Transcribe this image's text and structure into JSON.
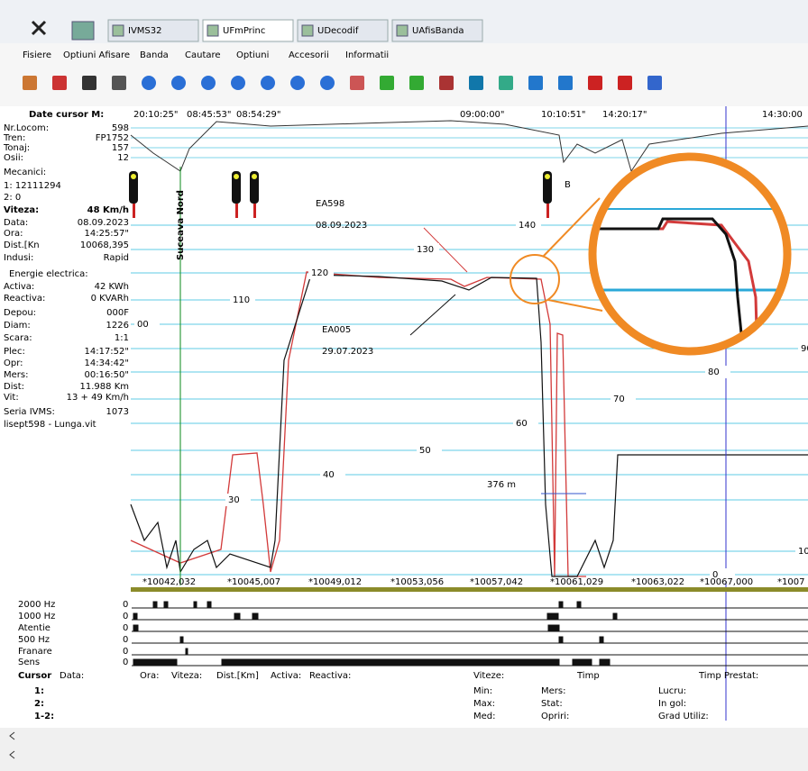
{
  "tabs": [
    "IVMS32",
    "UFmPrinc",
    "UDecodif",
    "UAfisBanda"
  ],
  "menu": [
    "Fisiere",
    "Optiuni Afisare",
    "Banda",
    "Cautare",
    "Optiuni",
    "Accesorii",
    "Informatii"
  ],
  "cursor_header": {
    "label": "Date cursor M:",
    "times": [
      "20:10:25\"",
      "08:45:53\"",
      "08:54:29\"",
      "09:00:00\"",
      "10:10:51\"",
      "14:20:17\"",
      "14:30:00"
    ]
  },
  "info_panel": [
    {
      "label": "Nr.Locom:",
      "value": "598"
    },
    {
      "label": "Tren:",
      "value": "FP1752"
    },
    {
      "label": "Tonaj:",
      "value": "157"
    },
    {
      "label": "Osii:",
      "value": "12"
    },
    {
      "label": "Mecanici:"
    },
    {
      "label": "1: 12111294"
    },
    {
      "label": "2: 0"
    },
    {
      "label": "Viteza:",
      "value": "48 Km/h"
    },
    {
      "label": "Data:",
      "value": "08.09.2023"
    },
    {
      "label": "Ora:",
      "value": "14:25:57\""
    },
    {
      "label": "Dist.[Kn",
      "value": "10068,395"
    },
    {
      "label": "Indusi:",
      "value": "Rapid"
    },
    {
      "label": "Energie electrica:"
    },
    {
      "label": "Activa:",
      "value": "42 KWh"
    },
    {
      "label": "Reactiva:",
      "value": "0 KVARh"
    },
    {
      "label": "Depou:",
      "value": "000F"
    },
    {
      "label": "Diam:",
      "value": "1226"
    },
    {
      "label": "Scara:",
      "value": "1:1"
    },
    {
      "label": "Plec:",
      "value": "14:17:52\""
    },
    {
      "label": "Opr:",
      "value": "14:34:42\""
    },
    {
      "label": "Mers:",
      "value": "00:16:50\""
    },
    {
      "label": "Dist:",
      "value": "11.988 Km"
    },
    {
      "label": "Vit:",
      "value": "13 + 49 Km/h"
    },
    {
      "label": "Seria IVMS:",
      "value": "1073"
    },
    {
      "label": "lisept598 - Lunga.vit"
    }
  ],
  "chart": {
    "annotations": {
      "ea598": "EA598",
      "date598": "08.09.2023",
      "ea005": "EA005",
      "date005": "29.07.2023",
      "station": "Suceava Nord",
      "distance": "376 m",
      "signal_letter": "B"
    },
    "speed_labels": [
      "140",
      "130",
      "120",
      "110",
      "00",
      "90",
      "80",
      "70",
      "60",
      "50",
      "40",
      "30",
      "10",
      "0"
    ],
    "distance_labels": [
      "*10042,032",
      "*10045,007",
      "*10049,012",
      "*10053,056",
      "*10057,042",
      "*10061,029",
      "*10063,022",
      "*10067,000",
      "*1007"
    ]
  },
  "band": [
    {
      "name": "2000 Hz",
      "value": "0"
    },
    {
      "name": "1000 Hz",
      "value": "0"
    },
    {
      "name": "Atentie",
      "value": "0"
    },
    {
      "name": "500 Hz",
      "value": "0"
    },
    {
      "name": "Franare",
      "value": "0"
    },
    {
      "name": "Sens",
      "value": "0"
    }
  ],
  "summary": {
    "cursor": "Cursor",
    "headers": [
      "Data:",
      "Ora:",
      "Viteza:",
      "Dist.[Km]",
      "Activa:",
      "Reactiva:",
      "Viteze:",
      "Timp",
      "Timp Prestat:"
    ],
    "rows": [
      "1:",
      "2:",
      "1-2:"
    ],
    "speeds": [
      "Min:",
      "Max:",
      "Med:"
    ],
    "times": [
      "Mers:",
      "Stat:",
      "Opriri:"
    ],
    "prestat": [
      "Lucru:",
      "In gol:",
      "Grad Utiliz:"
    ]
  }
}
